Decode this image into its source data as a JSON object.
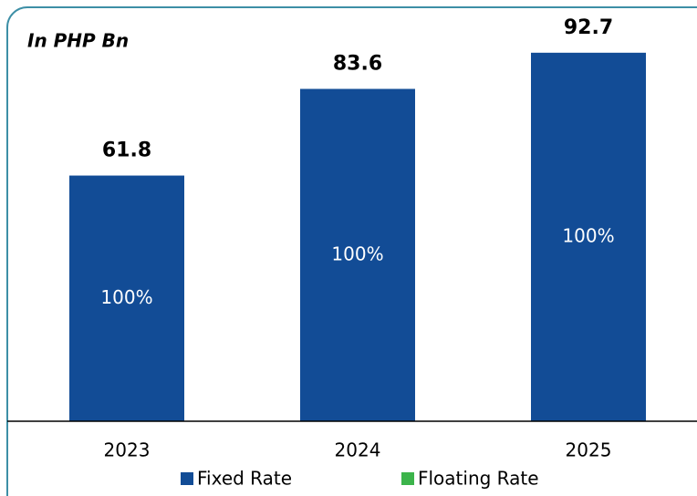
{
  "chart_data": {
    "type": "bar",
    "title": "In PHP Bn",
    "categories": [
      "2023",
      "2024",
      "2025"
    ],
    "series": [
      {
        "name": "Fixed Rate",
        "color": "#124c96",
        "values": [
          61.8,
          83.6,
          92.7
        ],
        "shares": [
          {
            "value": 100,
            "label": "100%"
          },
          {
            "value": 100,
            "label": "100%"
          },
          {
            "value": 100,
            "label": "100%"
          }
        ]
      },
      {
        "name": "Floating Rate",
        "color": "#3cb44b",
        "values": [
          0,
          0,
          0
        ]
      }
    ],
    "ylim": [
      0,
      100
    ],
    "legend": "bottom",
    "stacked": true
  }
}
